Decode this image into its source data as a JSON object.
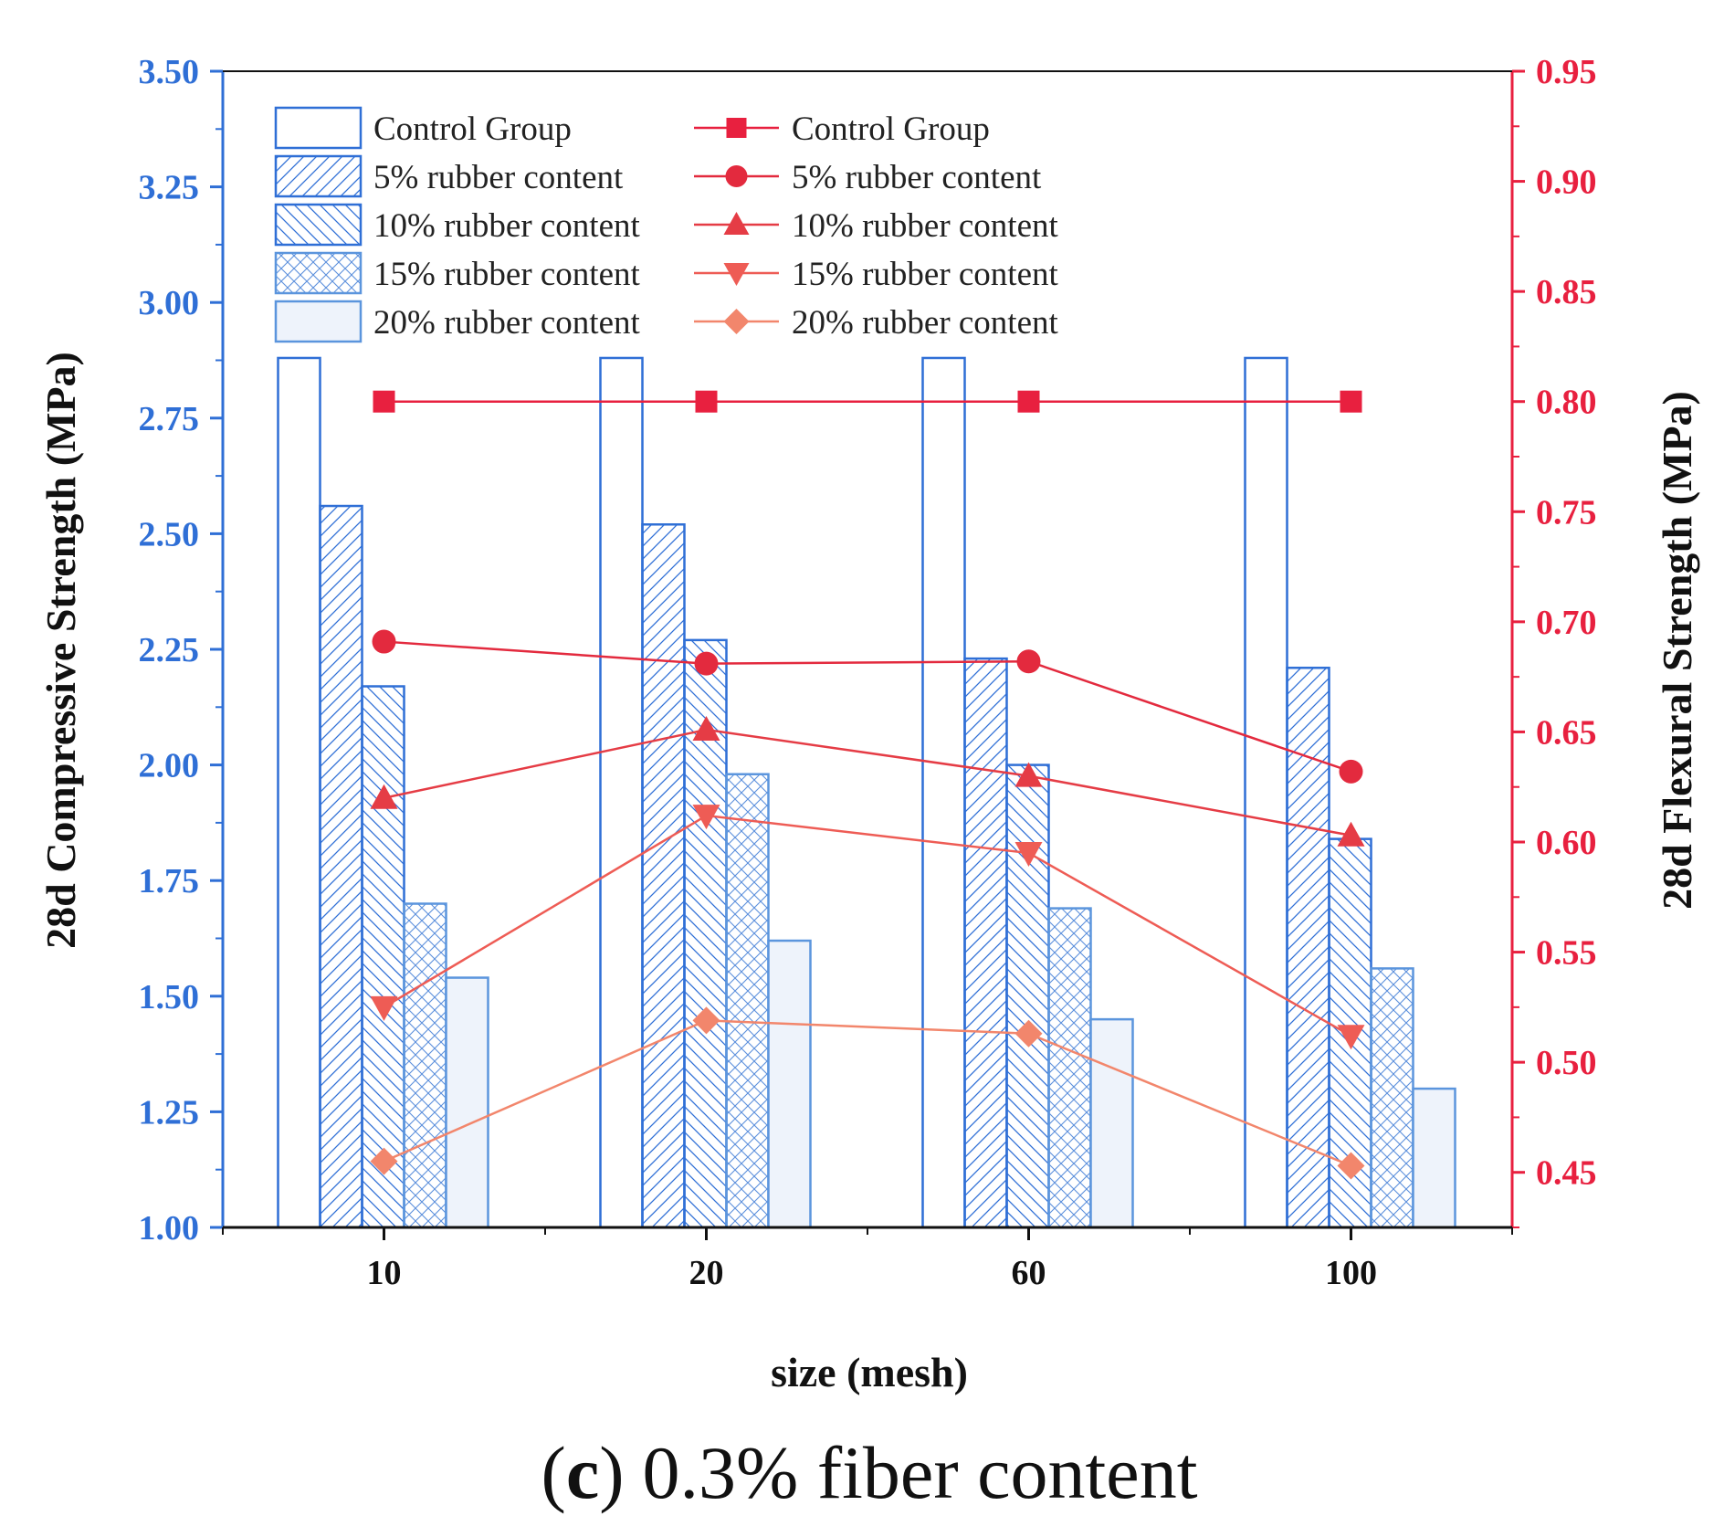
{
  "chart_data": {
    "type": "bar+line",
    "categories": [
      "10",
      "20",
      "60",
      "100"
    ],
    "xlabel": "size (mesh)",
    "ylabel_left": "28d Compressive Strength (MPa)",
    "ylabel_right": "28d Flexural Strength (MPa)",
    "ylim_left": [
      1.0,
      3.5
    ],
    "ylim_right": [
      0.425,
      0.95
    ],
    "yticks_left": [
      "1.00",
      "1.25",
      "1.50",
      "1.75",
      "2.00",
      "2.25",
      "2.50",
      "2.75",
      "3.00",
      "3.25",
      "3.50"
    ],
    "yticks_right": [
      "0.45",
      "0.50",
      "0.55",
      "0.60",
      "0.65",
      "0.70",
      "0.75",
      "0.80",
      "0.85",
      "0.90",
      "0.95"
    ],
    "caption_label": "c",
    "caption_paren_open": "(",
    "caption_paren_close": ")",
    "caption_text": "0.3% fiber content",
    "bar_series": [
      {
        "name": "Control Group",
        "pattern": "none",
        "values": [
          2.88,
          2.88,
          2.88,
          2.88
        ]
      },
      {
        "name": "5% rubber content",
        "pattern": "diag-right",
        "values": [
          2.56,
          2.52,
          2.23,
          2.21
        ]
      },
      {
        "name": "10% rubber content",
        "pattern": "diag-left",
        "values": [
          2.17,
          2.27,
          2.0,
          1.84
        ]
      },
      {
        "name": "15% rubber content",
        "pattern": "cross",
        "values": [
          1.7,
          1.98,
          1.69,
          1.56
        ]
      },
      {
        "name": "20% rubber content",
        "pattern": "solid-light",
        "values": [
          1.54,
          1.62,
          1.45,
          1.3
        ]
      }
    ],
    "line_series": [
      {
        "name": "Control Group",
        "marker": "square",
        "color": "#e8203f",
        "values": [
          0.8,
          0.8,
          0.8,
          0.8
        ]
      },
      {
        "name": "5% rubber content",
        "marker": "circle",
        "color": "#e32a3e",
        "values": [
          0.691,
          0.681,
          0.682,
          0.632
        ]
      },
      {
        "name": "10% rubber content",
        "marker": "triangle-up",
        "color": "#e53c45",
        "values": [
          0.62,
          0.651,
          0.63,
          0.603
        ]
      },
      {
        "name": "15% rubber content",
        "marker": "triangle-down",
        "color": "#ee5c55",
        "values": [
          0.525,
          0.612,
          0.595,
          0.512
        ]
      },
      {
        "name": "20% rubber content",
        "marker": "diamond",
        "color": "#f2866c",
        "values": [
          0.455,
          0.519,
          0.513,
          0.453
        ]
      }
    ],
    "colors": {
      "bar_edge": "#2f6fd6",
      "bar_fill_light": "#eef3fb",
      "left_axis": "#2f6fd6",
      "right_axis": "#e8203f",
      "bottom_axis": "#111111"
    }
  }
}
